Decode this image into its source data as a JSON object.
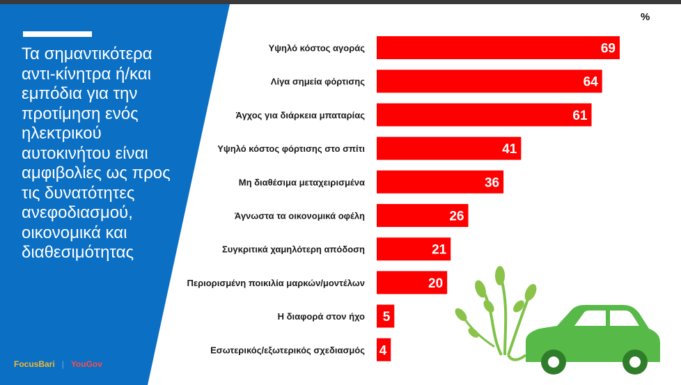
{
  "headline": "Τα σημαντικότερα αντι-κίνητρα ή/και εμπόδια για την προτίμηση ενός ηλεκτρικού αυτοκινήτου είναι αμφιβολίες ως προς τις δυνατότητες ανεφοδιασμού, οικονομικά και διαθεσιμότητας",
  "unit_label": "%",
  "logos": {
    "focus": "FocusBari",
    "yougov": "YouGov"
  },
  "colors": {
    "bar": "#ff0000",
    "panel": "#0b6fc4",
    "accent": "#ffffff"
  },
  "icons": [
    "electric-car-plant-icon"
  ],
  "chart_data": {
    "type": "bar",
    "orientation": "horizontal",
    "categories": [
      "Υψηλό κόστος αγοράς",
      "Λίγα σημεία φόρτισης",
      "Άγχος για διάρκεια μπαταρίας",
      "Υψηλό κόστος φόρτισης στο σπίτι",
      "Μη διαθέσιμα μεταχειρισμένα",
      "Άγνωστα τα οικονομικά οφέλη",
      "Συγκριτικά χαμηλότερη απόδοση",
      "Περιορισμένη ποικιλία μαρκών/μοντέλων",
      "Η διαφορά στον ήχο",
      "Εσωτερικός/εξωτερικός σχεδιασμός"
    ],
    "values": [
      69,
      64,
      61,
      41,
      36,
      26,
      21,
      20,
      5,
      4
    ],
    "data_labels": true,
    "grid": false,
    "legend": "none"
  }
}
